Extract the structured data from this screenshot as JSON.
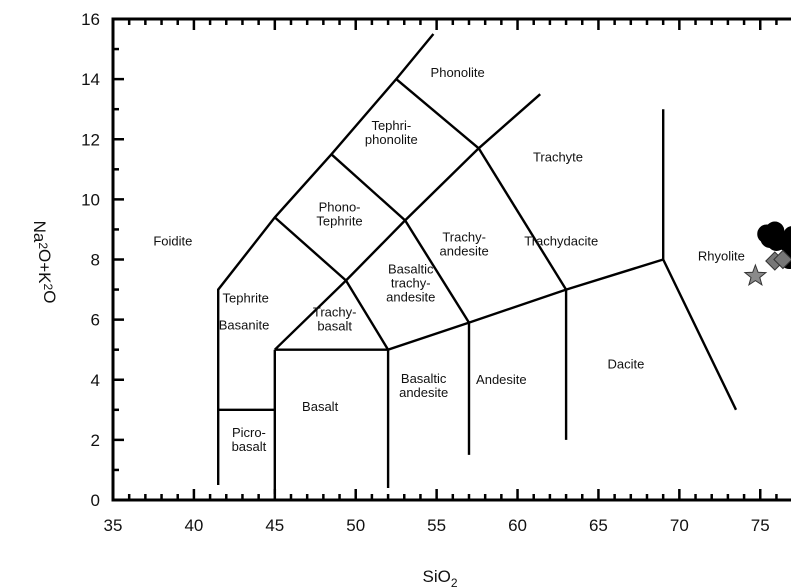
{
  "chart_data": {
    "type": "scatter",
    "title": "",
    "xlabel": "SiO",
    "xlabel_sub": "2",
    "ylabel_parts": [
      {
        "text": "Na",
        "sub": false
      },
      {
        "text": "2",
        "sub": true
      },
      {
        "text": "O+K",
        "sub": false
      },
      {
        "text": "2",
        "sub": true
      },
      {
        "text": "O",
        "sub": false
      }
    ],
    "xlim": [
      35,
      76.9
    ],
    "ylim": [
      0,
      16
    ],
    "xticks": [
      35,
      40,
      45,
      50,
      55,
      60,
      65,
      70,
      75
    ],
    "yticks": [
      0,
      2,
      4,
      6,
      8,
      10,
      12,
      14,
      16
    ],
    "grid": false,
    "classification_lines": [
      [
        [
          41.5,
          0.5
        ],
        [
          41.5,
          7.0
        ],
        [
          45.0,
          9.4
        ],
        [
          48.5,
          11.5
        ],
        [
          52.5,
          14.0
        ],
        [
          54.8,
          15.5
        ]
      ],
      [
        [
          45,
          0.2
        ],
        [
          45,
          5.0
        ]
      ],
      [
        [
          52,
          0.4
        ],
        [
          52,
          5.0
        ]
      ],
      [
        [
          57,
          1.5
        ],
        [
          57,
          5.9
        ]
      ],
      [
        [
          63,
          2.0
        ],
        [
          63,
          7.0
        ]
      ],
      [
        [
          41.5,
          3.0
        ],
        [
          45,
          3.0
        ]
      ],
      [
        [
          45,
          5.0
        ],
        [
          52,
          5.0
        ],
        [
          57,
          5.9
        ],
        [
          63,
          7.0
        ],
        [
          69,
          8.0
        ]
      ],
      [
        [
          45,
          5.0
        ],
        [
          49.4,
          7.3
        ],
        [
          52,
          5.0
        ]
      ],
      [
        [
          49.4,
          7.3
        ],
        [
          53.05,
          9.3
        ],
        [
          57.6,
          11.7
        ],
        [
          61.4,
          13.5
        ]
      ],
      [
        [
          45,
          9.4
        ],
        [
          49.4,
          7.3
        ]
      ],
      [
        [
          48.5,
          11.5
        ],
        [
          53.05,
          9.3
        ]
      ],
      [
        [
          52.5,
          14.0
        ],
        [
          57.6,
          11.7
        ]
      ],
      [
        [
          53.05,
          9.3
        ],
        [
          57,
          5.9
        ]
      ],
      [
        [
          57.6,
          11.7
        ],
        [
          63,
          7.0
        ]
      ],
      [
        [
          69,
          13.0
        ],
        [
          69,
          8.0
        ],
        [
          73.5,
          3.0
        ]
      ]
    ],
    "field_labels": [
      {
        "lines": [
          "Phonolite"
        ],
        "x": 56.3,
        "y": 14.2
      },
      {
        "lines": [
          "Tephri-",
          "phonolite"
        ],
        "x": 52.2,
        "y": 12.2
      },
      {
        "lines": [
          "Trachyte"
        ],
        "x": 62.5,
        "y": 11.4
      },
      {
        "lines": [
          "Phono-",
          "Tephrite"
        ],
        "x": 49.0,
        "y": 9.5
      },
      {
        "lines": [
          "Foidite"
        ],
        "x": 38.7,
        "y": 8.6
      },
      {
        "lines": [
          "Trachy-",
          "andesite"
        ],
        "x": 56.7,
        "y": 8.5
      },
      {
        "lines": [
          "Trachydacite"
        ],
        "x": 62.7,
        "y": 8.6
      },
      {
        "lines": [
          "Rhyolite"
        ],
        "x": 72.6,
        "y": 8.1
      },
      {
        "lines": [
          "Basaltic",
          "trachy-",
          "andesite"
        ],
        "x": 53.4,
        "y": 7.2
      },
      {
        "lines": [
          "Tephrite"
        ],
        "x": 43.2,
        "y": 6.7
      },
      {
        "lines": [
          "Basanite"
        ],
        "x": 43.1,
        "y": 5.8
      },
      {
        "lines": [
          "Trachy-",
          "basalt"
        ],
        "x": 48.7,
        "y": 6.0
      },
      {
        "lines": [
          "Dacite"
        ],
        "x": 66.7,
        "y": 4.5
      },
      {
        "lines": [
          "Andesite"
        ],
        "x": 59.0,
        "y": 4.0
      },
      {
        "lines": [
          "Basalt"
        ],
        "x": 47.8,
        "y": 3.1
      },
      {
        "lines": [
          "Basaltic",
          "andesite"
        ],
        "x": 54.2,
        "y": 3.8
      },
      {
        "lines": [
          "Picro-",
          "basalt"
        ],
        "x": 43.4,
        "y": 2.0
      }
    ],
    "series": [
      {
        "marker": "circle",
        "color": "#000000",
        "points": [
          [
            75.4,
            8.85
          ],
          [
            75.9,
            8.95
          ],
          [
            75.6,
            8.7
          ],
          [
            76.0,
            8.6
          ],
          [
            76.6,
            8.6
          ],
          [
            77.0,
            8.8
          ],
          [
            76.8,
            8.0
          ],
          [
            77.0,
            8.3
          ]
        ]
      },
      {
        "marker": "diamond",
        "color": "#777777",
        "points": [
          [
            75.9,
            7.95
          ],
          [
            76.4,
            8.0
          ]
        ]
      },
      {
        "marker": "star",
        "color": "#8a8a8a",
        "points": [
          [
            74.7,
            7.45
          ]
        ]
      }
    ]
  }
}
